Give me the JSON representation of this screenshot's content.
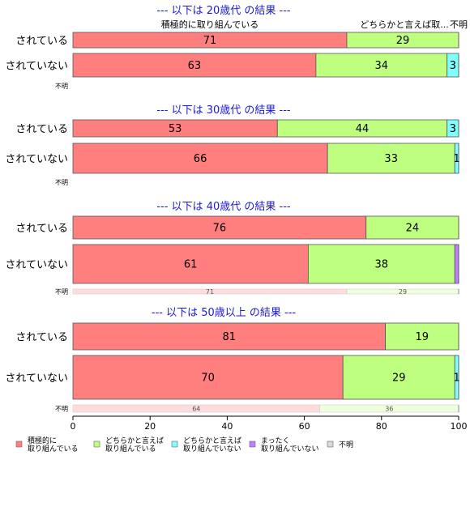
{
  "chart_data": {
    "type": "bar",
    "orientation": "horizontal",
    "stacked": true,
    "xlim": [
      0,
      100
    ],
    "x_ticks": [
      "0",
      "20",
      "40",
      "60",
      "80",
      "100"
    ],
    "category_headers": [
      "積極的に取り組んでいる",
      "どちらかと言えば取...",
      "不明"
    ],
    "legend": [
      {
        "label_lines": [
          "積極的に",
          "取り組んでいる"
        ],
        "color": "#ff7f7f"
      },
      {
        "label_lines": [
          "どちらかと言えば",
          "取り組んでいる"
        ],
        "color": "#bfff7f"
      },
      {
        "label_lines": [
          "どちらかと言えば",
          "取り組んでいない"
        ],
        "color": "#7fffff"
      },
      {
        "label_lines": [
          "まったく",
          "取り組んでいない"
        ],
        "color": "#bf7fff"
      },
      {
        "label_lines": [
          "不明"
        ],
        "color": "#d9d9d9"
      }
    ],
    "groups": [
      {
        "title": "--- 以下は 20歳代 の結果 ---",
        "rows": [
          {
            "label": "されている",
            "values": [
              71,
              29,
              0,
              0,
              0
            ],
            "labels": [
              "71",
              "29",
              "",
              "",
              ""
            ]
          },
          {
            "label": "されていない",
            "values": [
              63,
              34,
              3,
              0,
              0
            ],
            "labels": [
              "63",
              "34",
              "3",
              "",
              ""
            ]
          }
        ],
        "unknown": {
          "label": "不明",
          "values": [],
          "labels": []
        }
      },
      {
        "title": "--- 以下は 30歳代 の結果 ---",
        "rows": [
          {
            "label": "されている",
            "values": [
              53,
              44,
              3,
              0,
              0
            ],
            "labels": [
              "53",
              "44",
              "3",
              "",
              ""
            ]
          },
          {
            "label": "されていない",
            "values": [
              66,
              33,
              1,
              0,
              0
            ],
            "labels": [
              "66",
              "33",
              "1",
              "",
              ""
            ]
          }
        ],
        "unknown": {
          "label": "不明",
          "values": [],
          "labels": []
        }
      },
      {
        "title": "--- 以下は 40歳代 の結果 ---",
        "rows": [
          {
            "label": "されている",
            "values": [
              76,
              24,
              0,
              0,
              0
            ],
            "labels": [
              "76",
              "24",
              "",
              "",
              ""
            ]
          },
          {
            "label": "されていない",
            "values": [
              61,
              38,
              0,
              1,
              0
            ],
            "labels": [
              "61",
              "38",
              "",
              "",
              ""
            ]
          }
        ],
        "unknown": {
          "label": "不明",
          "values": [
            71,
            29,
            0,
            0,
            0
          ],
          "labels": [
            "71",
            "29",
            "",
            "",
            ""
          ]
        }
      },
      {
        "title": "--- 以下は 50歳以上 の結果 ---",
        "rows": [
          {
            "label": "されている",
            "values": [
              81,
              19,
              0,
              0,
              0
            ],
            "labels": [
              "81",
              "19",
              "",
              "",
              ""
            ]
          },
          {
            "label": "されていない",
            "values": [
              70,
              29,
              1,
              0,
              0
            ],
            "labels": [
              "70",
              "29",
              "1",
              "",
              ""
            ]
          }
        ],
        "unknown": {
          "label": "不明",
          "values": [
            64,
            36,
            0,
            0,
            0
          ],
          "labels": [
            "64",
            "36",
            "",
            "",
            ""
          ]
        }
      }
    ]
  }
}
